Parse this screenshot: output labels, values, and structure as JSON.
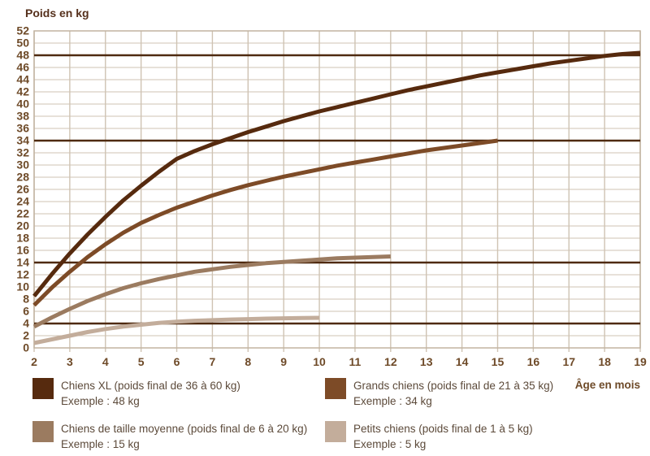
{
  "colors": {
    "xl": "#562a0e",
    "grand": "#7d4b27",
    "moyen": "#9b7b60",
    "petit": "#c3ad9b",
    "grid": "#cfc3b3",
    "border": "#c2b4a1",
    "reference": "#4f2a10",
    "axis_text": "#6e4a28",
    "legend_text": "#5c4a3a",
    "title_text": "#55301c"
  },
  "chart_data": {
    "type": "line",
    "title": "Poids en kg",
    "xlabel": "Âge en mois",
    "ylabel": "Poids en kg",
    "xlim": [
      2,
      19
    ],
    "ylim": [
      0,
      52
    ],
    "x_ticks": [
      2,
      3,
      4,
      5,
      6,
      7,
      8,
      9,
      10,
      11,
      12,
      13,
      14,
      15,
      16,
      17,
      18,
      19
    ],
    "y_ticks": [
      0,
      2,
      4,
      6,
      8,
      10,
      12,
      14,
      16,
      18,
      20,
      22,
      24,
      26,
      28,
      30,
      32,
      34,
      36,
      38,
      40,
      42,
      44,
      46,
      48,
      50,
      52
    ],
    "grid": true,
    "legend_position": "bottom",
    "reference_lines": [
      48,
      34,
      14,
      4
    ],
    "series": [
      {
        "name": "Chiens XL (poids final de 36 à 60 kg)",
        "example": "Exemple : 48 kg",
        "color": "#562a0e",
        "points": [
          [
            2,
            8.5
          ],
          [
            2.5,
            12.1
          ],
          [
            3,
            15.5
          ],
          [
            3.5,
            18.6
          ],
          [
            4,
            21.5
          ],
          [
            4.5,
            24.2
          ],
          [
            5,
            26.6
          ],
          [
            5.5,
            28.9
          ],
          [
            6,
            31
          ],
          [
            6.5,
            32.3
          ],
          [
            7,
            33.4
          ],
          [
            7.5,
            34.4
          ],
          [
            8,
            35.4
          ],
          [
            8.5,
            36.3
          ],
          [
            9,
            37.2
          ],
          [
            9.5,
            38
          ],
          [
            10,
            38.8
          ],
          [
            10.5,
            39.5
          ],
          [
            11,
            40.2
          ],
          [
            11.5,
            40.9
          ],
          [
            12,
            41.6
          ],
          [
            12.5,
            42.3
          ],
          [
            13,
            42.9
          ],
          [
            13.5,
            43.5
          ],
          [
            14,
            44.1
          ],
          [
            14.5,
            44.7
          ],
          [
            15,
            45.2
          ],
          [
            15.5,
            45.7
          ],
          [
            16,
            46.2
          ],
          [
            16.5,
            46.7
          ],
          [
            17,
            47.1
          ],
          [
            17.5,
            47.5
          ],
          [
            18,
            47.9
          ],
          [
            18.5,
            48.2
          ],
          [
            19,
            48.4
          ]
        ]
      },
      {
        "name": "Grands chiens (poids final de 21 à 35 kg)",
        "example": "Exemple : 34 kg",
        "color": "#7d4b27",
        "points": [
          [
            2,
            7
          ],
          [
            2.5,
            9.9
          ],
          [
            3,
            12.5
          ],
          [
            3.5,
            14.9
          ],
          [
            4,
            17
          ],
          [
            4.5,
            18.9
          ],
          [
            5,
            20.5
          ],
          [
            5.5,
            21.8
          ],
          [
            6,
            23
          ],
          [
            6.5,
            24
          ],
          [
            7,
            25
          ],
          [
            7.5,
            25.9
          ],
          [
            8,
            26.7
          ],
          [
            8.5,
            27.4
          ],
          [
            9,
            28.1
          ],
          [
            9.5,
            28.7
          ],
          [
            10,
            29.3
          ],
          [
            10.5,
            29.9
          ],
          [
            11,
            30.4
          ],
          [
            11.5,
            30.9
          ],
          [
            12,
            31.4
          ],
          [
            12.5,
            31.9
          ],
          [
            13,
            32.4
          ],
          [
            13.5,
            32.8
          ],
          [
            14,
            33.2
          ],
          [
            14.5,
            33.6
          ],
          [
            15,
            34
          ]
        ]
      },
      {
        "name": "Chiens de taille moyenne (poids final de 6 à 20 kg)",
        "example": "Exemple : 15 kg",
        "color": "#9b7b60",
        "points": [
          [
            2,
            3.5
          ],
          [
            2.5,
            5
          ],
          [
            3,
            6.4
          ],
          [
            3.5,
            7.7
          ],
          [
            4,
            8.8
          ],
          [
            4.5,
            9.8
          ],
          [
            5,
            10.6
          ],
          [
            5.5,
            11.3
          ],
          [
            6,
            11.9
          ],
          [
            6.5,
            12.5
          ],
          [
            7,
            12.9
          ],
          [
            7.5,
            13.3
          ],
          [
            8,
            13.6
          ],
          [
            8.5,
            13.9
          ],
          [
            9,
            14.1
          ],
          [
            9.5,
            14.3
          ],
          [
            10,
            14.5
          ],
          [
            10.5,
            14.7
          ],
          [
            11,
            14.8
          ],
          [
            11.5,
            14.9
          ],
          [
            12,
            15
          ]
        ]
      },
      {
        "name": "Petits chiens (poids final de 1 à 5 kg)",
        "example": "Exemple : 5 kg",
        "color": "#c3ad9b",
        "points": [
          [
            2,
            0.8
          ],
          [
            2.5,
            1.4
          ],
          [
            3,
            2
          ],
          [
            3.5,
            2.6
          ],
          [
            4,
            3.1
          ],
          [
            4.5,
            3.5
          ],
          [
            5,
            3.8
          ],
          [
            5.5,
            4.1
          ],
          [
            6,
            4.3
          ],
          [
            6.5,
            4.45
          ],
          [
            7,
            4.55
          ],
          [
            7.5,
            4.65
          ],
          [
            8,
            4.72
          ],
          [
            8.5,
            4.8
          ],
          [
            9,
            4.85
          ],
          [
            9.5,
            4.9
          ],
          [
            10,
            4.93
          ]
        ]
      }
    ]
  }
}
